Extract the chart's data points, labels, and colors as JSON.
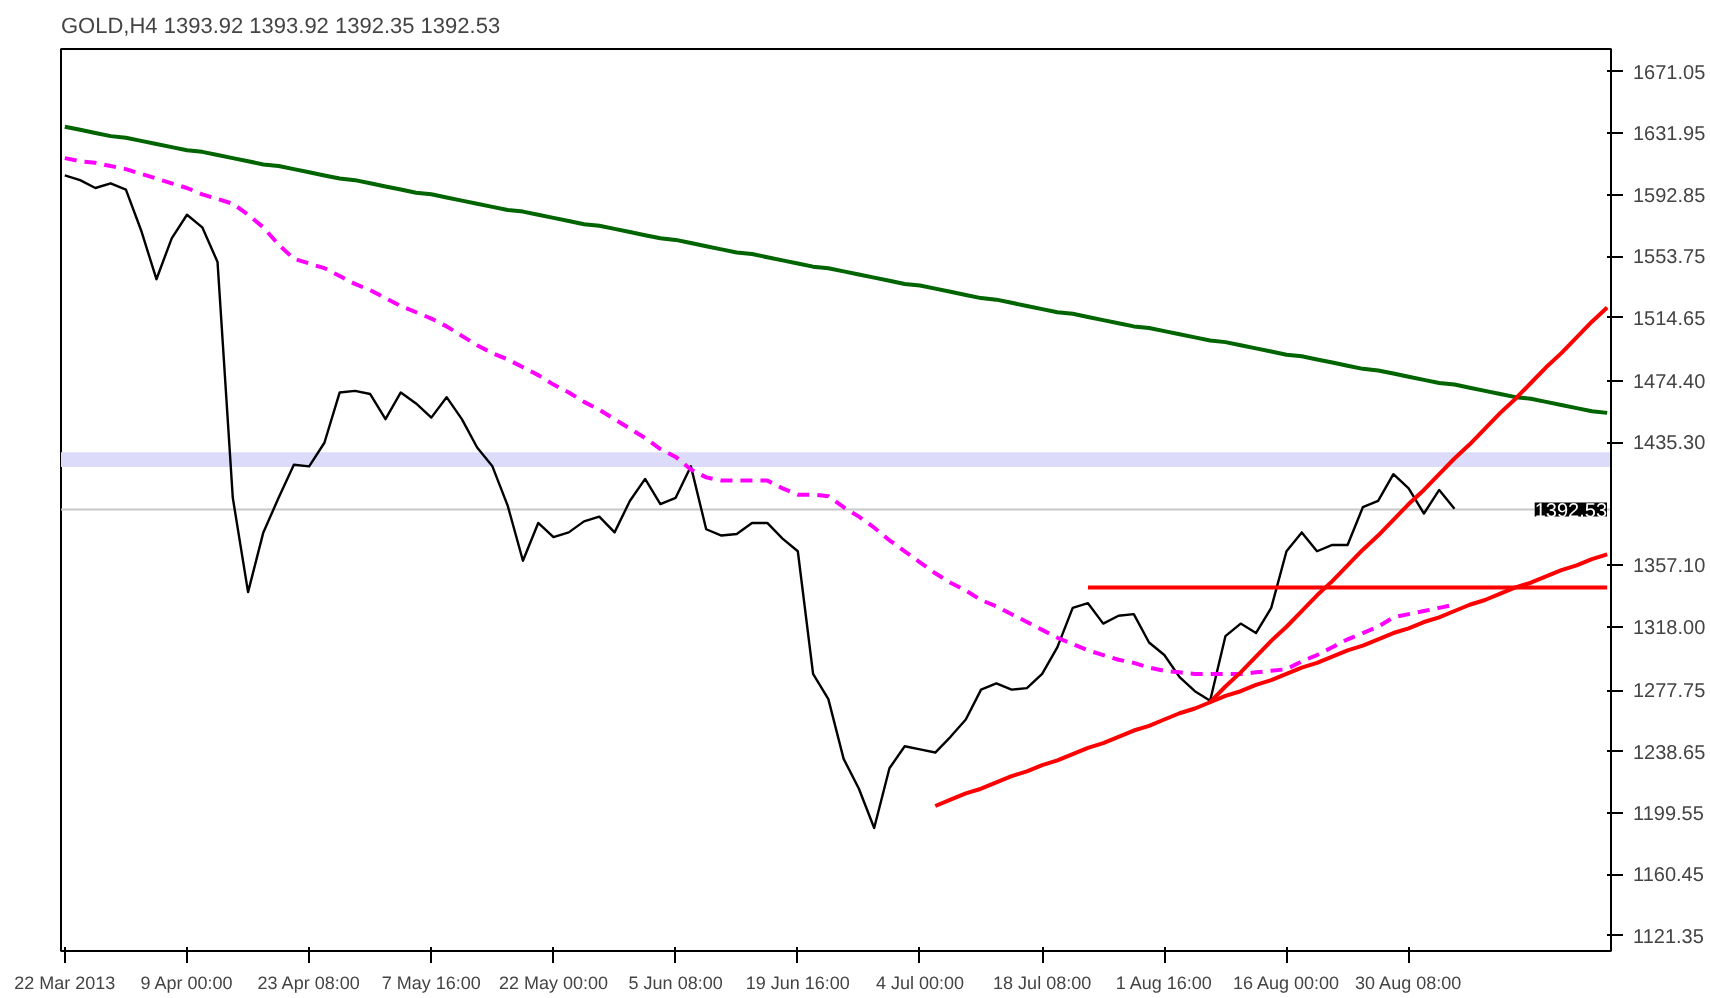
{
  "chart_data": {
    "type": "line",
    "title": "GOLD,H4  1393.92 1393.92 1392.35 1392.53",
    "categories": [
      "22 Mar 2013",
      null,
      null,
      null,
      null,
      null,
      null,
      null,
      "9 Apr 00:00",
      null,
      null,
      null,
      null,
      null,
      null,
      null,
      "23 Apr 08:00",
      null,
      null,
      null,
      null,
      null,
      null,
      null,
      "7 May 16:00",
      null,
      null,
      null,
      null,
      null,
      null,
      null,
      "22 May 00:00",
      null,
      null,
      null,
      null,
      null,
      null,
      null,
      "5 Jun 08:00",
      null,
      null,
      null,
      null,
      null,
      null,
      null,
      "19 Jun 16:00",
      null,
      null,
      null,
      null,
      null,
      null,
      null,
      "4 Jul 00:00",
      null,
      null,
      null,
      null,
      null,
      null,
      null,
      "18 Jul 08:00",
      null,
      null,
      null,
      null,
      null,
      null,
      null,
      "1 Aug 16:00",
      null,
      null,
      null,
      null,
      null,
      null,
      null,
      "16 Aug 00:00",
      null,
      null,
      null,
      null,
      null,
      null,
      null,
      "30 Aug 08:00",
      null,
      null,
      null,
      null,
      null,
      null,
      null,
      null,
      null,
      null,
      null,
      null,
      null
    ],
    "ylim": [
      1111.8,
      1685.4
    ],
    "yticks": [
      1671.05,
      1631.95,
      1592.85,
      1553.75,
      1514.65,
      {
        "value": 1474.4,
        "label": "1474.40"
      },
      {
        "value": 1435.3,
        "label": "1435.30"
      },
      {
        "value": 1357.1,
        "label": "1357.10"
      },
      {
        "value": 1318.0,
        "label": "1318.00"
      },
      1277.75,
      1238.65,
      1199.55,
      1160.45,
      1121.35
    ],
    "grid": false,
    "line_style": "solid",
    "series": [
      {
        "color": "#000000",
        "values": [
          1605,
          1602,
          1597,
          1600,
          1596,
          1570,
          1539,
          1565,
          1580,
          1572,
          1550,
          1400,
          1340,
          1378,
          1400,
          1421,
          1420,
          1435,
          1467,
          1468,
          1466,
          1450,
          1467,
          1460,
          1451,
          1464,
          1450,
          1432,
          1420,
          1395,
          1360,
          1384,
          1375,
          1378,
          1385,
          1388,
          1378,
          1398,
          1412,
          1396,
          1400,
          1420,
          1380,
          1376,
          1377,
          1384,
          1384,
          1374,
          1366,
          1288,
          1272,
          1234,
          1215,
          1190,
          1228,
          1242,
          1240,
          1238,
          1248,
          1259,
          1278,
          1282,
          1278,
          1279,
          1288,
          1305,
          1330,
          1333,
          1320,
          1325,
          1326,
          1308,
          1300,
          1286,
          1277,
          1271,
          1312,
          1320,
          1314,
          1330,
          1366,
          1378,
          1366,
          1370,
          1370,
          1394,
          1398,
          1415,
          1406,
          1390,
          1405,
          1393,
          null,
          null,
          null,
          null,
          null,
          null,
          null,
          null,
          null,
          null
        ]
      },
      {
        "color": "#ff00ff",
        "line_style": "dashed",
        "values": [
          1616,
          1614,
          1613,
          1611,
          1609,
          1606,
          1603,
          1600,
          1597,
          1593,
          1590,
          1587,
          1580,
          1572,
          1561,
          1552,
          1549,
          1546,
          1541,
          1536,
          1532,
          1527,
          1522,
          1518,
          1514,
          1509,
          1503,
          1497,
          1492,
          1488,
          1483,
          1478,
          1472,
          1467,
          1461,
          1456,
          1450,
          1444,
          1438,
          1431,
          1426,
          1418,
          1413,
          1411,
          1411,
          1411,
          1411,
          1406,
          1402,
          1402,
          1401,
          1394,
          1388,
          1381,
          1373,
          1366,
          1359,
          1352,
          1346,
          1341,
          1335,
          1331,
          1326,
          1321,
          1316,
          1311,
          1307,
          1303,
          1300,
          1297,
          1295,
          1292,
          1290,
          1289,
          1288,
          1288,
          1288,
          1288,
          1289,
          1290,
          1291,
          1296,
          1300,
          1305,
          1310,
          1314,
          1318,
          1324,
          1326,
          1328,
          1330,
          1332,
          null,
          null,
          null,
          null,
          null,
          null,
          null,
          null,
          null,
          null
        ]
      },
      {
        "color": "#006400",
        "values": [
          1636,
          1634,
          1632,
          1630,
          1629,
          1627,
          1625,
          1623,
          1621,
          1620,
          1618,
          1616,
          1614,
          1612,
          1611,
          1609,
          1607,
          1605,
          1603,
          1602,
          1600,
          1598,
          1596,
          1594,
          1593,
          1591,
          1589,
          1587,
          1585,
          1583,
          1582,
          1580,
          1578,
          1576,
          1574,
          1573,
          1571,
          1569,
          1567,
          1565,
          1564,
          1562,
          1560,
          1558,
          1556,
          1555,
          1553,
          1551,
          1549,
          1547,
          1546,
          1544,
          1542,
          1540,
          1538,
          1536,
          1535,
          1533,
          1531,
          1529,
          1527,
          1526,
          1524,
          1522,
          1520,
          1518,
          1517,
          1515,
          1513,
          1511,
          1509,
          1508,
          1506,
          1504,
          1502,
          1500,
          1499,
          1497,
          1495,
          1493,
          1491,
          1490,
          1488,
          1486,
          1484,
          1482,
          1481,
          1479,
          1477,
          1475,
          1473,
          1472,
          1470,
          1468,
          1466,
          1464,
          1463,
          1461,
          1459,
          1457,
          1455,
          1454
        ]
      },
      {
        "color": "#ff0000",
        "values": [
          null,
          null,
          null,
          null,
          null,
          null,
          null,
          null,
          null,
          null,
          null,
          null,
          null,
          null,
          null,
          null,
          null,
          null,
          null,
          null,
          null,
          null,
          null,
          null,
          null,
          null,
          null,
          null,
          null,
          null,
          null,
          null,
          null,
          null,
          null,
          null,
          null,
          null,
          null,
          null,
          null,
          null,
          null,
          null,
          null,
          null,
          null,
          null,
          null,
          null,
          null,
          null,
          null,
          null,
          null,
          null,
          null,
          1204,
          1208,
          1212,
          1215,
          1219,
          1223,
          1226,
          1230,
          1233,
          1237,
          1241,
          1244,
          1248,
          1252,
          1255,
          1259,
          1263,
          1266,
          1270,
          1274,
          1277,
          1281,
          1284,
          1288,
          1292,
          1295,
          1299,
          1303,
          1306,
          1310,
          1314,
          1317,
          1321,
          1324,
          1328,
          1332,
          1335,
          1339,
          1343,
          1346,
          1350,
          1354,
          1357,
          1361,
          1364
        ]
      },
      {
        "color": "#ff0000",
        "values": [
          null,
          null,
          null,
          null,
          null,
          null,
          null,
          null,
          null,
          null,
          null,
          null,
          null,
          null,
          null,
          null,
          null,
          null,
          null,
          null,
          null,
          null,
          null,
          null,
          null,
          null,
          null,
          null,
          null,
          null,
          null,
          null,
          null,
          null,
          null,
          null,
          null,
          null,
          null,
          null,
          null,
          null,
          null,
          null,
          null,
          null,
          null,
          null,
          null,
          null,
          null,
          null,
          null,
          null,
          null,
          null,
          null,
          null,
          null,
          null,
          null,
          null,
          null,
          null,
          null,
          null,
          null,
          null,
          null,
          null,
          null,
          null,
          null,
          null,
          null,
          1270,
          1280,
          1289,
          1299,
          1309,
          1318,
          1328,
          1338,
          1347,
          1357,
          1367,
          1376,
          1386,
          1396,
          1405,
          1415,
          1425,
          1434,
          1444,
          1454,
          1463,
          1473,
          1483,
          1492,
          1502,
          1512,
          1521
        ]
      },
      {
        "color": "#ff0000",
        "values": [
          null,
          null,
          null,
          null,
          null,
          null,
          null,
          null,
          null,
          null,
          null,
          null,
          null,
          null,
          null,
          null,
          null,
          null,
          null,
          null,
          null,
          null,
          null,
          null,
          null,
          null,
          null,
          null,
          null,
          null,
          null,
          null,
          null,
          null,
          null,
          null,
          null,
          null,
          null,
          null,
          null,
          null,
          null,
          null,
          null,
          null,
          null,
          null,
          null,
          null,
          null,
          null,
          null,
          null,
          null,
          null,
          null,
          null,
          null,
          null,
          null,
          null,
          null,
          null,
          null,
          null,
          null,
          1343,
          1343,
          1343,
          1343,
          1343,
          1343,
          1343,
          1343,
          1343,
          1343,
          1343,
          1343,
          1343,
          1343,
          1343,
          1343,
          1343,
          1343,
          1343,
          1343,
          1343,
          1343,
          1343,
          1343,
          1343,
          1343,
          1343,
          1343,
          1343,
          1343,
          1343,
          1343,
          1343,
          1343,
          1343
        ]
      }
    ],
    "ref_lines": [
      {
        "axis": "y",
        "value": 1392.53,
        "label": "1392.53",
        "color": "#c8c8c8"
      }
    ],
    "bands": [
      {
        "axis": "y",
        "from": 1419.6,
        "to": 1429.0,
        "color": "#dcdcfa"
      }
    ]
  }
}
